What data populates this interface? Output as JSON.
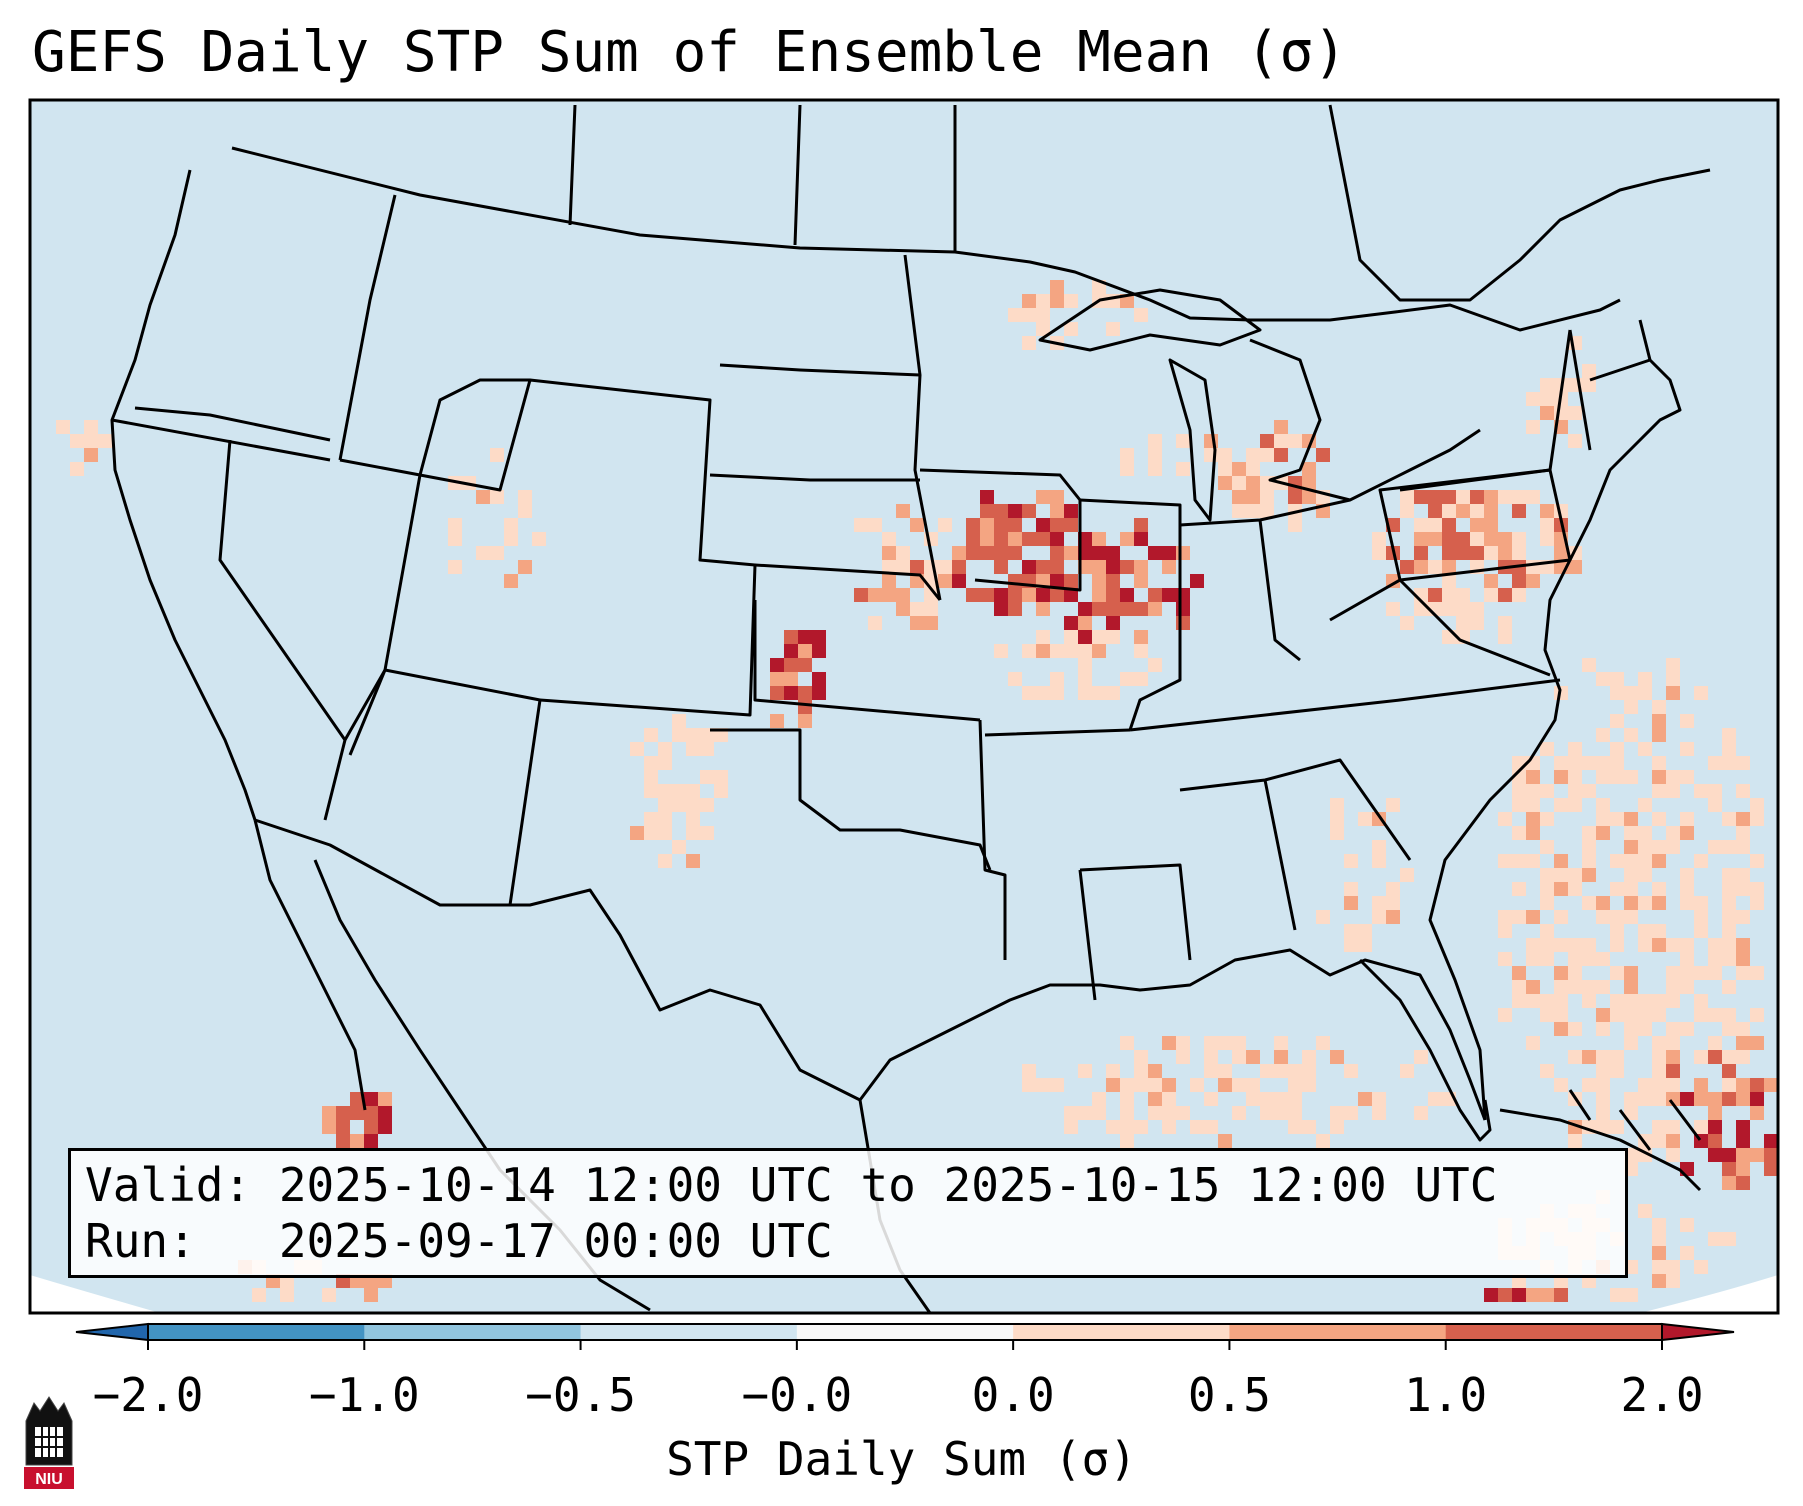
{
  "title": "GEFS Daily STP Sum of Ensemble Mean (σ)",
  "map": {
    "background_color": "#d1e5f0",
    "border_color": "#000000"
  },
  "info": {
    "valid_line": "Valid: 2025-10-14 12:00 UTC to 2025-10-15 12:00 UTC",
    "run_line": "Run:   2025-09-17 00:00 UTC"
  },
  "colorbar": {
    "label": "STP Daily Sum (σ)",
    "ticks": [
      "−2.0",
      "−1.0",
      "−0.5",
      "−0.0",
      "0.0",
      "0.5",
      "1.0",
      "2.0"
    ],
    "colors": [
      "#2166ac",
      "#4393c3",
      "#92c5de",
      "#d1e5f0",
      "#f7f7f7",
      "#fddbc7",
      "#f4a582",
      "#d6604d",
      "#b2182b"
    ]
  },
  "logo": {
    "text": "NIU",
    "icon": "niu-logo-icon"
  }
}
